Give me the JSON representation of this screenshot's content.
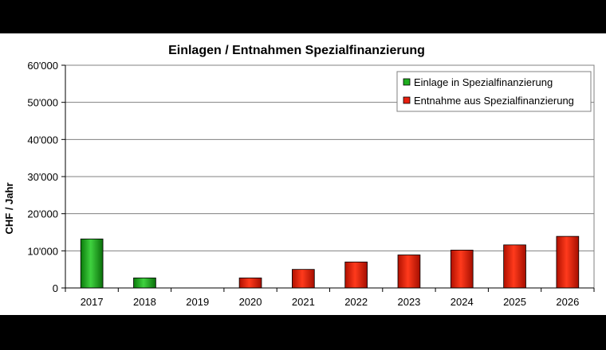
{
  "chart_data": {
    "type": "bar",
    "title": "Einlagen / Entnahmen Spezialfinanzierung",
    "xlabel": "",
    "ylabel": "CHF / Jahr",
    "ylim": [
      0,
      60000
    ],
    "yticks": [
      {
        "value": 0,
        "label": "0"
      },
      {
        "value": 10000,
        "label": "10'000"
      },
      {
        "value": 20000,
        "label": "20'000"
      },
      {
        "value": 30000,
        "label": "30'000"
      },
      {
        "value": 40000,
        "label": "40'000"
      },
      {
        "value": 50000,
        "label": "50'000"
      },
      {
        "value": 60000,
        "label": "60'000"
      }
    ],
    "grid": true,
    "legend_position": "top-right",
    "categories": [
      "2017",
      "2018",
      "2019",
      "2020",
      "2021",
      "2022",
      "2023",
      "2024",
      "2025",
      "2026"
    ],
    "series": [
      {
        "name": "Einlage in Spezialfinanzierung",
        "color": "#1fae1f",
        "values": [
          13200,
          2700,
          0,
          0,
          0,
          0,
          0,
          0,
          0,
          0
        ]
      },
      {
        "name": "Entnahme aus Spezialfinanzierung",
        "color": "#e8200f",
        "values": [
          0,
          0,
          0,
          2700,
          5000,
          7000,
          8900,
          10200,
          11600,
          13900
        ]
      }
    ]
  }
}
